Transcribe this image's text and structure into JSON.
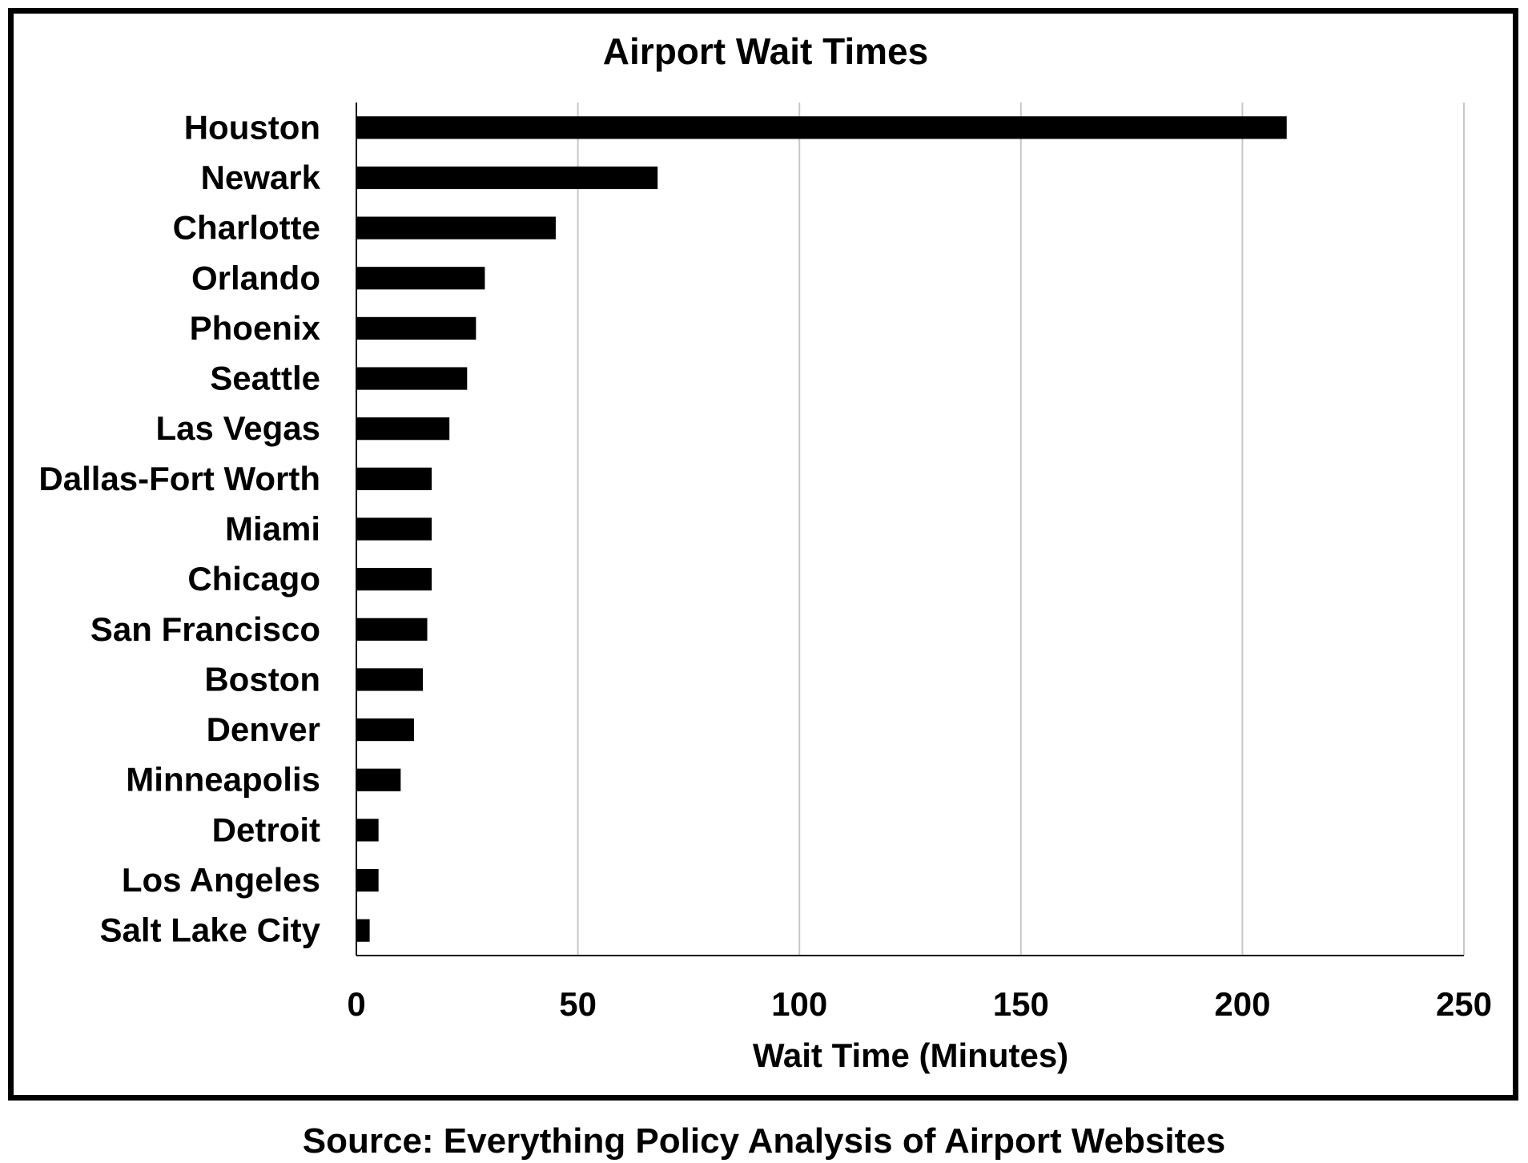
{
  "chart_data": {
    "type": "bar",
    "orientation": "horizontal",
    "title": "Airport Wait Times",
    "xlabel": "Wait Time (Minutes)",
    "ylabel": "",
    "xlim": [
      0,
      250
    ],
    "x_ticks": [
      "0",
      "50",
      "100",
      "150",
      "200",
      "250"
    ],
    "grid": "vertical",
    "legend": "none",
    "bar_color": "#000000",
    "gridline_color": "#c8c8c8",
    "categories": [
      "Houston",
      "Newark",
      "Charlotte",
      "Orlando",
      "Phoenix",
      "Seattle",
      "Las Vegas",
      "Dallas-Fort Worth",
      "Miami",
      "Chicago",
      "San Francisco",
      "Boston",
      "Denver",
      "Minneapolis",
      "Detroit",
      "Los Angeles",
      "Salt Lake City"
    ],
    "values": [
      210,
      68,
      45,
      29,
      27,
      25,
      21,
      17,
      17,
      17,
      16,
      15,
      13,
      10,
      5,
      5,
      3
    ]
  },
  "source": "Source: Everything Policy Analysis of Airport Websites"
}
